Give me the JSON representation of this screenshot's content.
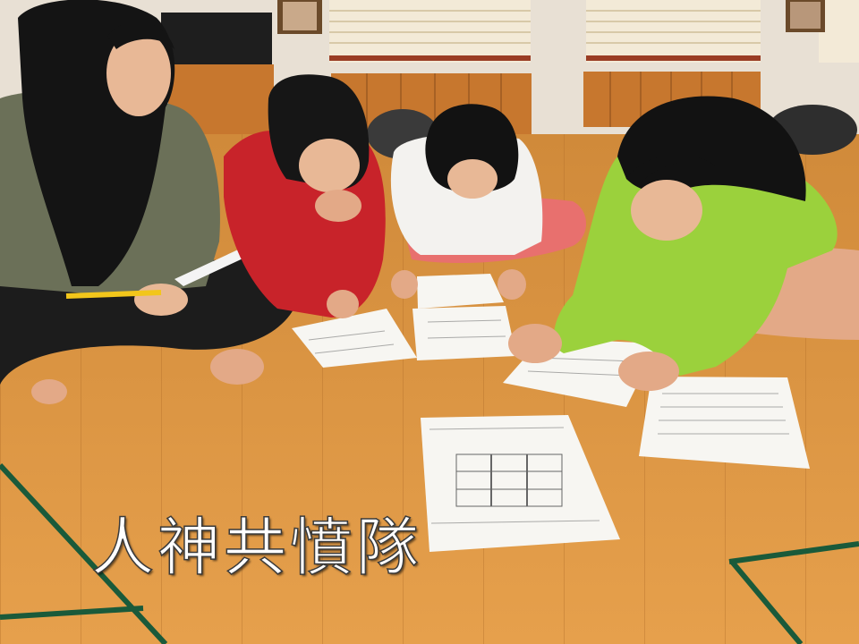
{
  "caption": "人神共憤隊"
}
